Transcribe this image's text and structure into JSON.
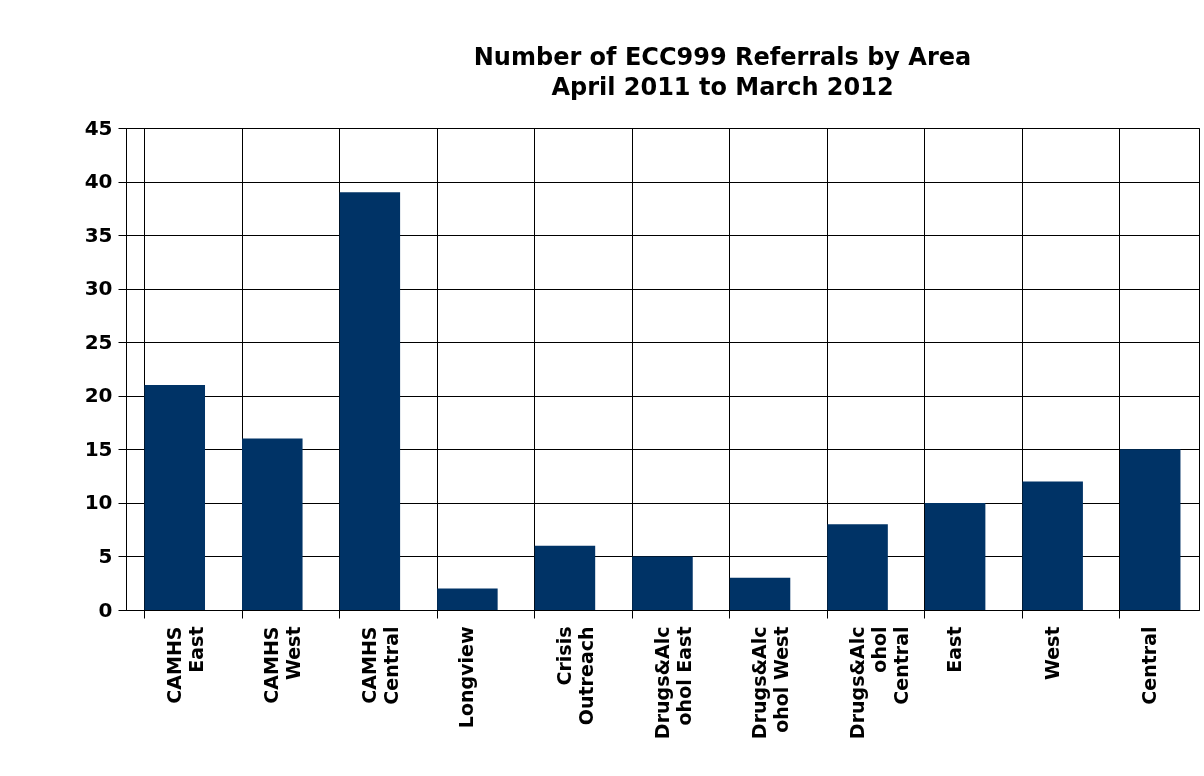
{
  "chart_data": {
    "type": "bar",
    "title": "Number of ECC999 Referrals by Area",
    "subtitle": "April 2011 to March 2012",
    "categories": [
      "CAMHS\nEast",
      "CAMHS\nWest",
      "CAMHS\nCentral",
      "Longview",
      "Crisis\nOutreach",
      "Drugs&Alc\nohol East",
      "Drugs&Alc\nohol West",
      "Drugs&Alc\nohol\nCentral",
      "East",
      "West",
      "Central"
    ],
    "values": [
      21,
      16,
      39,
      2,
      6,
      5,
      3,
      8,
      10,
      12,
      15
    ],
    "color": "#003366",
    "ylim": [
      0,
      45
    ],
    "yticks": [
      0,
      5,
      10,
      15,
      20,
      25,
      30,
      35,
      40,
      45
    ],
    "grid": true
  }
}
